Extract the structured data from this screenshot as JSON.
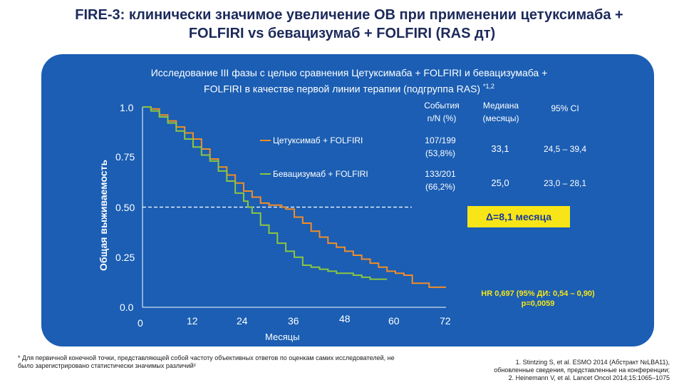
{
  "title": {
    "line1": "FIRE-3: клинически значимое увеличение ОВ при применении цетуксимаба +",
    "line2": "FOLFIRI vs бевацизумаб + FOLFIRI (RAS дт)"
  },
  "subtitle": {
    "line1": "Исследование III фазы с целью сравнения Цетуксимаба + FOLFIRI и бевацизумаба +",
    "line2": "FOLFIRI в качестве первой линии терапии (подгруппа RAS)",
    "line2_sup": "*1,2"
  },
  "table": {
    "headers": [
      "События n/N (%)",
      "Медиана (месяцы)",
      "95% CI"
    ],
    "rows": [
      {
        "arm": "Цетуксимаб + FOLFIRI",
        "events": "107/199 (53,8%)",
        "median": "33,1",
        "ci": "24,5 – 39,4",
        "color": "#f28c28"
      },
      {
        "arm": "Бевацизумаб + FOLFIRI",
        "events": "133/201 (66,2%)",
        "median": "25,0",
        "ci": "23,0 – 28,1",
        "color": "#8bc53f"
      }
    ]
  },
  "delta_label": "Δ=8,1 месяца",
  "hr_text": {
    "line1": "HR 0,697 (95% ДИ: 0,54 – 0,90)",
    "line2": "p=0,0059"
  },
  "footnote_left": "* Для первичной конечной точки, представляющей собой частоту объективных ответов по оценкам самих исследователей, не было зарегистрировано статистически значимых различий²",
  "footnote_right": {
    "line1": "1. Stintzing S, et al. ESMO 2014 (Абстракт №LBA11),",
    "line2": "обновленные сведения, представленные на конференции;",
    "line3": "2. Heinemann V, et al. Lancet Oncol 2014;15:1065–1075"
  },
  "chart_data": {
    "type": "line",
    "xlabel": "Месяцы",
    "ylabel": "Общая выживаемость",
    "x_ticks": [
      "0",
      "12",
      "24",
      "36",
      "48",
      "60",
      "72"
    ],
    "y_ticks": [
      "1.0",
      "0.75",
      "0.50",
      "0.25",
      "0.0"
    ],
    "xlim": [
      0,
      72
    ],
    "ylim": [
      0,
      1
    ],
    "reference_line_y": 0.5,
    "series": [
      {
        "name": "Цетуксимаб + FOLFIRI",
        "color": "#f28c28",
        "points": [
          [
            0,
            1.0
          ],
          [
            2,
            0.99
          ],
          [
            4,
            0.96
          ],
          [
            6,
            0.93
          ],
          [
            8,
            0.9
          ],
          [
            10,
            0.87
          ],
          [
            12,
            0.84
          ],
          [
            14,
            0.79
          ],
          [
            16,
            0.74
          ],
          [
            18,
            0.7
          ],
          [
            20,
            0.66
          ],
          [
            22,
            0.62
          ],
          [
            24,
            0.58
          ],
          [
            26,
            0.55
          ],
          [
            28,
            0.52
          ],
          [
            30,
            0.51
          ],
          [
            33,
            0.5
          ],
          [
            34,
            0.49
          ],
          [
            36,
            0.45
          ],
          [
            38,
            0.42
          ],
          [
            40,
            0.38
          ],
          [
            42,
            0.35
          ],
          [
            44,
            0.32
          ],
          [
            46,
            0.3
          ],
          [
            48,
            0.28
          ],
          [
            50,
            0.26
          ],
          [
            52,
            0.24
          ],
          [
            54,
            0.22
          ],
          [
            56,
            0.2
          ],
          [
            58,
            0.18
          ],
          [
            60,
            0.17
          ],
          [
            62,
            0.16
          ],
          [
            64,
            0.12
          ],
          [
            68,
            0.1
          ],
          [
            72,
            0.1
          ]
        ]
      },
      {
        "name": "Бевацизумаб + FOLFIRI",
        "color": "#8bc53f",
        "points": [
          [
            0,
            1.0
          ],
          [
            2,
            0.98
          ],
          [
            4,
            0.95
          ],
          [
            6,
            0.92
          ],
          [
            8,
            0.88
          ],
          [
            10,
            0.84
          ],
          [
            12,
            0.8
          ],
          [
            14,
            0.76
          ],
          [
            16,
            0.73
          ],
          [
            18,
            0.68
          ],
          [
            20,
            0.63
          ],
          [
            22,
            0.57
          ],
          [
            24,
            0.53
          ],
          [
            25,
            0.5
          ],
          [
            26,
            0.47
          ],
          [
            28,
            0.41
          ],
          [
            30,
            0.37
          ],
          [
            32,
            0.32
          ],
          [
            34,
            0.28
          ],
          [
            36,
            0.25
          ],
          [
            38,
            0.21
          ],
          [
            40,
            0.2
          ],
          [
            42,
            0.19
          ],
          [
            44,
            0.18
          ],
          [
            46,
            0.17
          ],
          [
            48,
            0.17
          ],
          [
            50,
            0.16
          ],
          [
            52,
            0.15
          ],
          [
            54,
            0.14
          ],
          [
            58,
            0.14
          ]
        ]
      }
    ]
  }
}
